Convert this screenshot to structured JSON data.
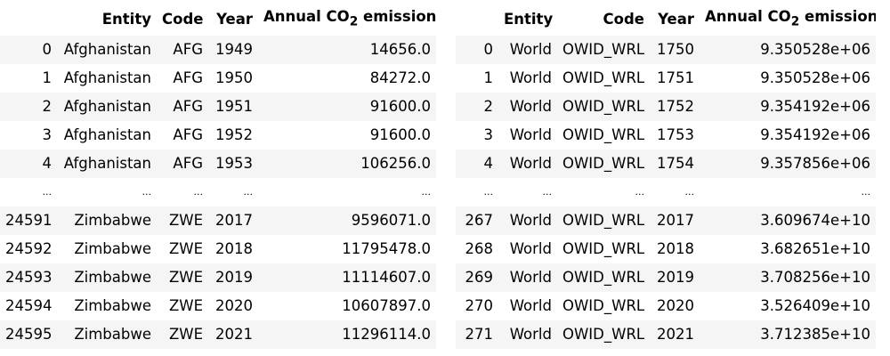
{
  "sub_two": "2",
  "left_table": {
    "headers": {
      "index": "",
      "entity": "Entity",
      "code": "Code",
      "year": "Year",
      "emissions_prefix": "Annual CO",
      "emissions_suffix": " emissions"
    },
    "rows": [
      {
        "index": "0",
        "entity": "Afghanistan",
        "code": "AFG",
        "year": "1949",
        "value": "14656.0"
      },
      {
        "index": "1",
        "entity": "Afghanistan",
        "code": "AFG",
        "year": "1950",
        "value": "84272.0"
      },
      {
        "index": "2",
        "entity": "Afghanistan",
        "code": "AFG",
        "year": "1951",
        "value": "91600.0"
      },
      {
        "index": "3",
        "entity": "Afghanistan",
        "code": "AFG",
        "year": "1952",
        "value": "91600.0"
      },
      {
        "index": "4",
        "entity": "Afghanistan",
        "code": "AFG",
        "year": "1953",
        "value": "106256.0"
      },
      {
        "index": "...",
        "entity": "...",
        "code": "...",
        "year": "...",
        "value": "..."
      },
      {
        "index": "24591",
        "entity": "Zimbabwe",
        "code": "ZWE",
        "year": "2017",
        "value": "9596071.0"
      },
      {
        "index": "24592",
        "entity": "Zimbabwe",
        "code": "ZWE",
        "year": "2018",
        "value": "11795478.0"
      },
      {
        "index": "24593",
        "entity": "Zimbabwe",
        "code": "ZWE",
        "year": "2019",
        "value": "11114607.0"
      },
      {
        "index": "24594",
        "entity": "Zimbabwe",
        "code": "ZWE",
        "year": "2020",
        "value": "10607897.0"
      },
      {
        "index": "24595",
        "entity": "Zimbabwe",
        "code": "ZWE",
        "year": "2021",
        "value": "11296114.0"
      }
    ]
  },
  "right_table": {
    "headers": {
      "index": "",
      "entity": "Entity",
      "code": "Code",
      "year": "Year",
      "emissions_prefix": "Annual CO",
      "emissions_suffix": " emissions"
    },
    "rows": [
      {
        "index": "0",
        "entity": "World",
        "code": "OWID_WRL",
        "year": "1750",
        "value": "9.350528e+06"
      },
      {
        "index": "1",
        "entity": "World",
        "code": "OWID_WRL",
        "year": "1751",
        "value": "9.350528e+06"
      },
      {
        "index": "2",
        "entity": "World",
        "code": "OWID_WRL",
        "year": "1752",
        "value": "9.354192e+06"
      },
      {
        "index": "3",
        "entity": "World",
        "code": "OWID_WRL",
        "year": "1753",
        "value": "9.354192e+06"
      },
      {
        "index": "4",
        "entity": "World",
        "code": "OWID_WRL",
        "year": "1754",
        "value": "9.357856e+06"
      },
      {
        "index": "...",
        "entity": "...",
        "code": "...",
        "year": "...",
        "value": "..."
      },
      {
        "index": "267",
        "entity": "World",
        "code": "OWID_WRL",
        "year": "2017",
        "value": "3.609674e+10"
      },
      {
        "index": "268",
        "entity": "World",
        "code": "OWID_WRL",
        "year": "2018",
        "value": "3.682651e+10"
      },
      {
        "index": "269",
        "entity": "World",
        "code": "OWID_WRL",
        "year": "2019",
        "value": "3.708256e+10"
      },
      {
        "index": "270",
        "entity": "World",
        "code": "OWID_WRL",
        "year": "2020",
        "value": "3.526409e+10"
      },
      {
        "index": "271",
        "entity": "World",
        "code": "OWID_WRL",
        "year": "2021",
        "value": "3.712385e+10"
      }
    ]
  }
}
